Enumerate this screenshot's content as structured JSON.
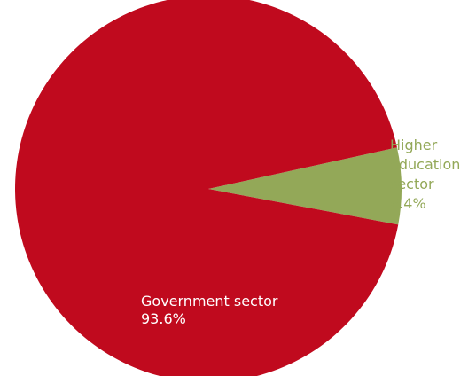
{
  "chart_data": {
    "type": "pie",
    "slices": [
      {
        "label_lines": [
          "Government sector",
          "93.6%"
        ],
        "category": "Government sector",
        "value": 93.6,
        "value_label": "93.6%",
        "color": "#c00a1e",
        "label_color": "#ffffff"
      },
      {
        "label_lines": [
          "Higher",
          "education",
          "sector",
          "6.4%"
        ],
        "category": "Higher education sector",
        "value": 6.4,
        "value_label": "6.4%",
        "color": "#93a858",
        "label_color": "#93a858"
      }
    ],
    "legend": "none"
  }
}
